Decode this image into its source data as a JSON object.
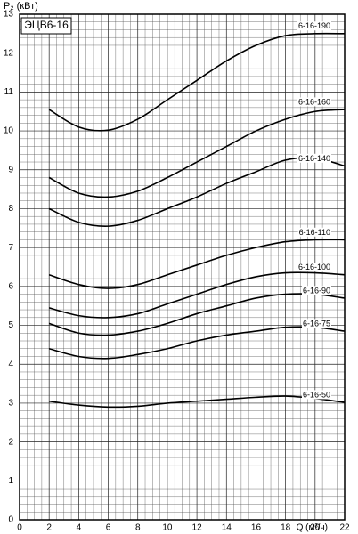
{
  "chart_data": {
    "type": "line",
    "title": "ЭЦВ6-16",
    "y_label": "P₂ (кВт)",
    "x_label": "Q (м³/ч)",
    "xlim": [
      0,
      22
    ],
    "xticks": [
      0,
      2,
      4,
      6,
      8,
      10,
      12,
      14,
      16,
      18,
      20,
      22
    ],
    "ylim": [
      0,
      13
    ],
    "yticks": [
      0,
      1,
      2,
      3,
      4,
      5,
      6,
      7,
      8,
      9,
      10,
      11,
      12,
      13
    ],
    "grid": true,
    "x": [
      2,
      4,
      6,
      8,
      10,
      12,
      14,
      16,
      18,
      20,
      22
    ],
    "series": [
      {
        "name": "6-16-190",
        "color": "#000000",
        "values": [
          10.55,
          10.1,
          10.02,
          10.3,
          10.8,
          11.3,
          11.8,
          12.2,
          12.45,
          12.5,
          12.5
        ]
      },
      {
        "name": "6-16-160",
        "color": "#000000",
        "values": [
          8.8,
          8.4,
          8.3,
          8.45,
          8.8,
          9.2,
          9.6,
          10.0,
          10.3,
          10.5,
          10.55
        ]
      },
      {
        "name": "6-16-140",
        "color": "#000000",
        "values": [
          8.0,
          7.65,
          7.55,
          7.7,
          8.0,
          8.3,
          8.65,
          8.95,
          9.25,
          9.3,
          9.1
        ]
      },
      {
        "name": "6-16-110",
        "color": "#000000",
        "values": [
          6.3,
          6.05,
          5.95,
          6.05,
          6.3,
          6.55,
          6.8,
          7.0,
          7.15,
          7.2,
          7.2
        ]
      },
      {
        "name": "6-16-100",
        "color": "#000000",
        "values": [
          5.45,
          5.25,
          5.2,
          5.3,
          5.55,
          5.8,
          6.05,
          6.25,
          6.35,
          6.35,
          6.3
        ]
      },
      {
        "name": "6-16-90",
        "color": "#000000",
        "values": [
          5.05,
          4.8,
          4.75,
          4.85,
          5.05,
          5.3,
          5.5,
          5.7,
          5.8,
          5.8,
          5.7
        ]
      },
      {
        "name": "6-16-75",
        "color": "#000000",
        "values": [
          4.4,
          4.2,
          4.15,
          4.25,
          4.4,
          4.6,
          4.75,
          4.85,
          4.95,
          4.95,
          4.85
        ]
      },
      {
        "name": "6-16-50",
        "color": "#000000",
        "values": [
          3.05,
          2.95,
          2.9,
          2.92,
          3.0,
          3.05,
          3.1,
          3.15,
          3.18,
          3.12,
          3.02
        ]
      }
    ]
  }
}
